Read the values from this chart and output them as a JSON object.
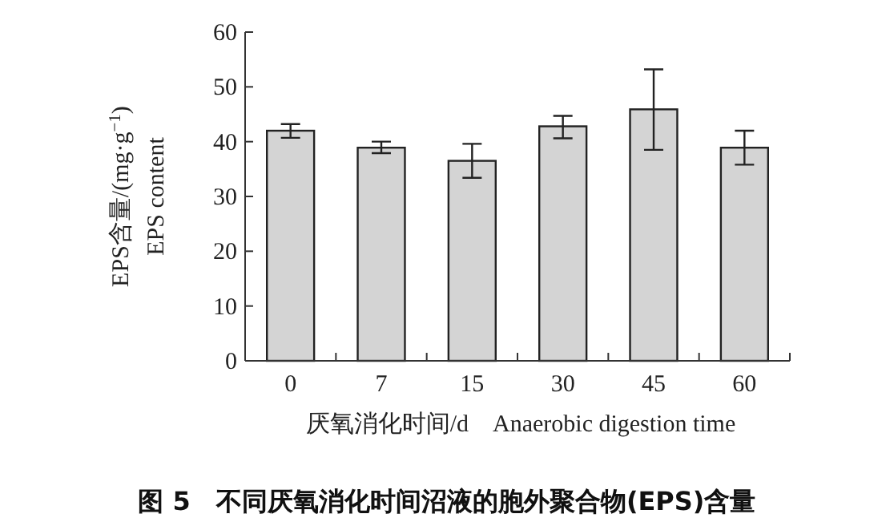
{
  "chart_data": {
    "type": "bar",
    "title": "图 5　不同厌氧消化时间沼液的胞外聚合物(EPS)含量",
    "xlabel": "厌氧消化时间/d　Anaerobic digestion time",
    "ylabel": "EPS含量/(mg·g$^{−1}$)\nEPS content",
    "categories": [
      "0",
      "7",
      "15",
      "30",
      "45",
      "60"
    ],
    "values": [
      42.0,
      38.9,
      36.5,
      42.8,
      45.9,
      38.9
    ],
    "errors": [
      [
        40.7,
        43.2
      ],
      [
        37.9,
        40.0
      ],
      [
        33.4,
        39.6
      ],
      [
        40.6,
        44.7
      ],
      [
        38.5,
        53.2
      ],
      [
        35.8,
        42.0
      ]
    ],
    "color": "#d4d4d4",
    "ylim": [
      0,
      60
    ],
    "yticks": [
      0,
      10,
      20,
      30,
      40,
      50,
      60
    ],
    "grid": false
  }
}
